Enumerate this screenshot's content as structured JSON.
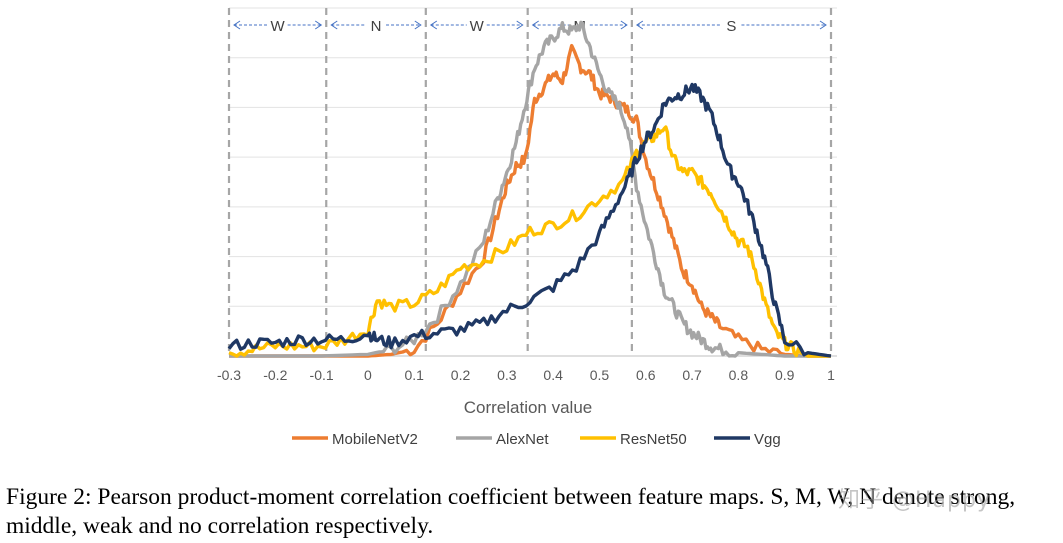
{
  "chart_data": {
    "type": "line",
    "xlabel": "Correlation value",
    "xlim": [
      -0.3,
      1.0
    ],
    "ylim": [
      0,
      1
    ],
    "x_ticks": [
      "-0.3",
      "-0.2",
      "-0.1",
      "0",
      "0.1",
      "0.2",
      "0.3",
      "0.4",
      "0.5",
      "0.6",
      "0.7",
      "0.8",
      "0.9",
      "1"
    ],
    "grid": "horizontal",
    "legend_position": "bottom",
    "regions": [
      {
        "label": "W",
        "from": -0.3,
        "to": -0.09
      },
      {
        "label": "N",
        "from": -0.09,
        "to": 0.125
      },
      {
        "label": "W",
        "from": 0.125,
        "to": 0.345
      },
      {
        "label": "M",
        "from": 0.345,
        "to": 0.57
      },
      {
        "label": "S",
        "from": 0.57,
        "to": 1.0
      }
    ],
    "region_boundaries": [
      -0.3,
      -0.09,
      0.125,
      0.345,
      0.57,
      1.0
    ],
    "series": [
      {
        "name": "MobileNetV2",
        "color": "#ED7D31",
        "x": [
          -0.3,
          -0.2,
          -0.1,
          0.0,
          0.05,
          0.1,
          0.15,
          0.2,
          0.25,
          0.28,
          0.3,
          0.32,
          0.34,
          0.36,
          0.38,
          0.4,
          0.42,
          0.44,
          0.46,
          0.48,
          0.5,
          0.52,
          0.54,
          0.56,
          0.58,
          0.6,
          0.62,
          0.64,
          0.66,
          0.68,
          0.7,
          0.72,
          0.74,
          0.76,
          0.8,
          0.85,
          0.9,
          0.95,
          1.0
        ],
        "y": [
          0.0,
          0.0,
          0.0,
          0.0,
          0.005,
          0.02,
          0.1,
          0.2,
          0.3,
          0.43,
          0.52,
          0.58,
          0.6,
          0.78,
          0.82,
          0.86,
          0.84,
          0.93,
          0.88,
          0.86,
          0.8,
          0.79,
          0.77,
          0.75,
          0.72,
          0.6,
          0.52,
          0.44,
          0.35,
          0.26,
          0.22,
          0.15,
          0.12,
          0.09,
          0.05,
          0.02,
          0.005,
          0.0,
          0.0
        ]
      },
      {
        "name": "AlexNet",
        "color": "#A5A5A5",
        "x": [
          -0.3,
          -0.2,
          -0.1,
          0.0,
          0.05,
          0.1,
          0.15,
          0.2,
          0.25,
          0.28,
          0.3,
          0.32,
          0.34,
          0.36,
          0.38,
          0.4,
          0.42,
          0.44,
          0.46,
          0.48,
          0.5,
          0.52,
          0.54,
          0.56,
          0.58,
          0.6,
          0.62,
          0.64,
          0.66,
          0.68,
          0.7,
          0.72,
          0.74,
          0.76,
          0.8,
          0.85,
          0.9,
          0.95,
          1.0
        ],
        "y": [
          0.0,
          0.0,
          0.0,
          0.005,
          0.02,
          0.05,
          0.12,
          0.22,
          0.35,
          0.48,
          0.56,
          0.65,
          0.77,
          0.88,
          0.94,
          0.97,
          1.0,
          0.99,
          1.01,
          0.94,
          0.86,
          0.8,
          0.77,
          0.7,
          0.52,
          0.4,
          0.3,
          0.2,
          0.15,
          0.1,
          0.07,
          0.05,
          0.03,
          0.02,
          0.01,
          0.005,
          0.0,
          0.0,
          0.0
        ]
      },
      {
        "name": "ResNet50",
        "color": "#FFC000",
        "x": [
          -0.3,
          -0.25,
          -0.2,
          -0.15,
          -0.1,
          -0.05,
          0.0,
          0.02,
          0.05,
          0.1,
          0.15,
          0.2,
          0.25,
          0.3,
          0.35,
          0.4,
          0.45,
          0.5,
          0.55,
          0.58,
          0.6,
          0.62,
          0.64,
          0.66,
          0.68,
          0.7,
          0.72,
          0.74,
          0.76,
          0.78,
          0.8,
          0.82,
          0.84,
          0.86,
          0.88,
          0.9,
          0.92,
          0.95,
          1.0
        ],
        "y": [
          0.01,
          0.02,
          0.03,
          0.03,
          0.03,
          0.05,
          0.08,
          0.17,
          0.15,
          0.16,
          0.2,
          0.27,
          0.29,
          0.33,
          0.38,
          0.4,
          0.43,
          0.48,
          0.53,
          0.62,
          0.65,
          0.67,
          0.7,
          0.6,
          0.56,
          0.56,
          0.53,
          0.5,
          0.45,
          0.4,
          0.35,
          0.33,
          0.25,
          0.15,
          0.07,
          0.04,
          0.02,
          0.0,
          0.0
        ]
      },
      {
        "name": "Vgg",
        "color": "#1F3864",
        "x": [
          -0.3,
          -0.25,
          -0.2,
          -0.15,
          -0.1,
          -0.05,
          0.0,
          0.02,
          0.05,
          0.1,
          0.15,
          0.2,
          0.25,
          0.3,
          0.35,
          0.4,
          0.45,
          0.5,
          0.53,
          0.56,
          0.58,
          0.6,
          0.62,
          0.64,
          0.66,
          0.68,
          0.7,
          0.72,
          0.74,
          0.76,
          0.78,
          0.8,
          0.82,
          0.84,
          0.86,
          0.88,
          0.9,
          0.95,
          1.0
        ],
        "y": [
          0.03,
          0.04,
          0.04,
          0.05,
          0.05,
          0.05,
          0.07,
          0.05,
          0.04,
          0.06,
          0.07,
          0.08,
          0.1,
          0.14,
          0.17,
          0.21,
          0.27,
          0.37,
          0.45,
          0.53,
          0.6,
          0.66,
          0.7,
          0.77,
          0.79,
          0.8,
          0.82,
          0.79,
          0.74,
          0.66,
          0.57,
          0.53,
          0.46,
          0.38,
          0.28,
          0.15,
          0.05,
          0.01,
          0.0
        ]
      }
    ]
  },
  "caption": "Figure 2: Pearson product-moment correlation coefficient between feature maps. S, M, W, N denote strong, middle, weak and no correlation respectively.",
  "watermark": "知乎 @Happy"
}
